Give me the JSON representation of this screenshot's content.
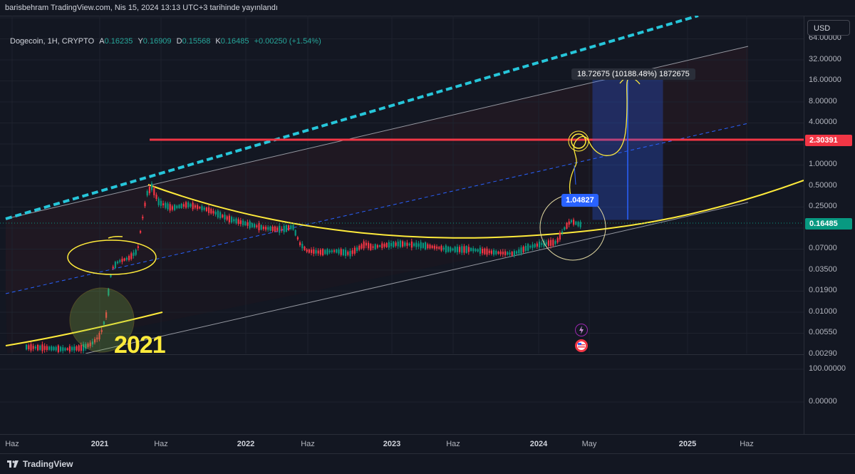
{
  "header": {
    "published": "barisbehram TradingView.com, Nis 15, 2024 13:13 UTC+3 tarihinde yayınlandı"
  },
  "legend": {
    "symbol": "Dogecoin, 1H, CRYPTO",
    "open_key": "A",
    "open": "0.16235",
    "high_key": "Y",
    "high": "0.16909",
    "low_key": "D",
    "low": "0.15568",
    "close_key": "K",
    "close": "0.16485",
    "change": "+0.00250 (+1.54%)"
  },
  "price_axis": {
    "currency_button": "USD",
    "ticks": [
      "64.00000",
      "32.00000",
      "16.00000",
      "8.00000",
      "4.00000",
      "2.00000",
      "1.00000",
      "0.50000",
      "0.25000",
      "0.13000",
      "0.07000",
      "0.03500",
      "0.01900",
      "0.01000",
      "0.00550",
      "0.00290"
    ],
    "resistance_tag": "2.30391",
    "last_price_tag": "0.16485"
  },
  "indicator_axis": {
    "ticks": [
      "100.00000",
      "0.00000"
    ]
  },
  "time_axis": {
    "ticks": [
      {
        "label": "Haz",
        "year": false
      },
      {
        "label": "2021",
        "year": true
      },
      {
        "label": "Haz",
        "year": false
      },
      {
        "label": "2022",
        "year": true
      },
      {
        "label": "Haz",
        "year": false
      },
      {
        "label": "2023",
        "year": true
      },
      {
        "label": "Haz",
        "year": false
      },
      {
        "label": "2024",
        "year": true
      },
      {
        "label": "May",
        "year": false
      },
      {
        "label": "2025",
        "year": true
      },
      {
        "label": "Haz",
        "year": false
      }
    ]
  },
  "annotations": {
    "measure": "18.72675 (10188.48%) 1872675",
    "price_label": "1.04827",
    "year_label": "2021"
  },
  "footer": {
    "brand": "TradingView"
  },
  "colors": {
    "background": "#131722",
    "resistance": "#f23645",
    "curve": "#ffeb3b",
    "channel_top": "#26c6da",
    "up_candle": "#089981",
    "down_candle": "#f23645",
    "measure_box": "#2962ff"
  }
}
